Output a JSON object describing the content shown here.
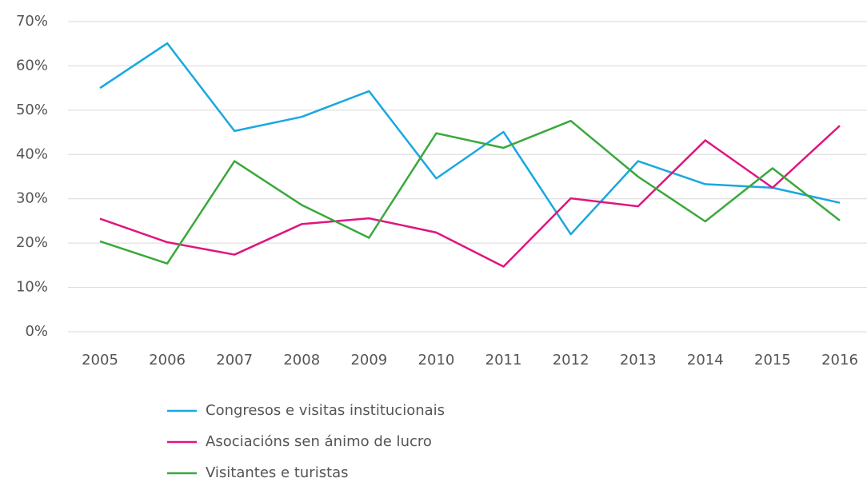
{
  "chart_data": {
    "type": "line",
    "categories": [
      "2005",
      "2006",
      "2007",
      "2008",
      "2009",
      "2010",
      "2011",
      "2012",
      "2013",
      "2014",
      "2015",
      "2016"
    ],
    "series": [
      {
        "name": "Congresos e visitas institucionais",
        "color": "#1aa7e0",
        "values": [
          55.0,
          65.1,
          45.3,
          48.5,
          54.3,
          34.6,
          45.1,
          22.0,
          38.5,
          33.3,
          32.5,
          29.1
        ]
      },
      {
        "name": "Asociacións sen ánimo de lucro",
        "color": "#e0157f",
        "values": [
          25.5,
          20.2,
          17.4,
          24.3,
          25.6,
          22.4,
          14.7,
          30.1,
          28.3,
          43.2,
          32.5,
          46.5
        ]
      },
      {
        "name": "Visitantes e turistas",
        "color": "#3aa83c",
        "values": [
          20.4,
          15.4,
          38.5,
          28.6,
          21.2,
          44.8,
          41.5,
          47.6,
          35.0,
          24.9,
          36.9,
          25.1
        ]
      }
    ],
    "ylim": [
      0,
      70
    ],
    "yticks": [
      {
        "value": 0,
        "label": "0%"
      },
      {
        "value": 10,
        "label": "10%"
      },
      {
        "value": 20,
        "label": "20%"
      },
      {
        "value": 30,
        "label": "30%"
      },
      {
        "value": 40,
        "label": "40%"
      },
      {
        "value": 50,
        "label": "50%"
      },
      {
        "value": 60,
        "label": "60%"
      },
      {
        "value": 70,
        "label": "70%"
      }
    ],
    "grid": true,
    "legend": "bottom"
  }
}
